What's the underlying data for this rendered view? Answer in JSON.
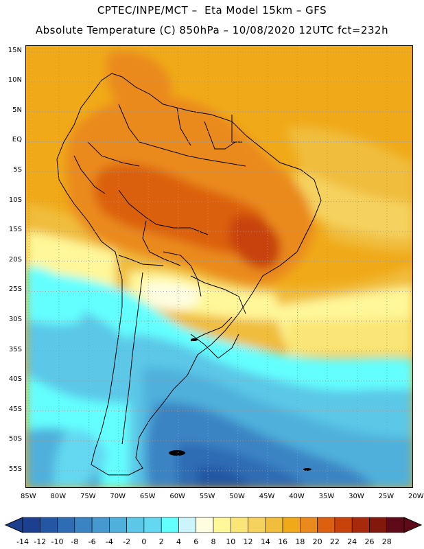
{
  "header": {
    "line1": "CPTEC/INPE/MCT –  Eta Model 15km – GFS",
    "line2": "Absolute Temperature (C) 850hPa – 10/08/2020 12UTC fct=232h"
  },
  "map": {
    "region": "South America",
    "latitude_labels": [
      "15N",
      "10N",
      "5N",
      "EQ",
      "5S",
      "10S",
      "15S",
      "20S",
      "25S",
      "30S",
      "35S",
      "40S",
      "45S",
      "50S",
      "55S"
    ],
    "latitude_values": [
      15,
      10,
      5,
      0,
      -5,
      -10,
      -15,
      -20,
      -25,
      -30,
      -35,
      -40,
      -45,
      -50,
      -55
    ],
    "longitude_labels": [
      "85W",
      "80W",
      "75W",
      "70W",
      "65W",
      "60W",
      "55W",
      "50W",
      "45W",
      "40W",
      "35W",
      "30W",
      "25W",
      "20W"
    ],
    "longitude_values": [
      -85,
      -80,
      -75,
      -70,
      -65,
      -60,
      -55,
      -50,
      -45,
      -40,
      -35,
      -30,
      -25,
      -20
    ],
    "lon_range": [
      -85.5,
      -20.5
    ],
    "lat_range": [
      -58,
      16
    ]
  },
  "colorbar": {
    "labels": [
      "-14",
      "-12",
      "-10",
      "-8",
      "-6",
      "-4",
      "-2",
      "0",
      "2",
      "4",
      "6",
      "8",
      "10",
      "12",
      "14",
      "16",
      "18",
      "20",
      "22",
      "24",
      "26",
      "28"
    ],
    "values": [
      -14,
      -12,
      -10,
      -8,
      -6,
      -4,
      -2,
      0,
      2,
      4,
      6,
      8,
      10,
      12,
      14,
      16,
      18,
      20,
      22,
      24,
      26,
      28
    ],
    "colors": [
      "#1d3f8f",
      "#2357a3",
      "#2e6cb4",
      "#3a84c4",
      "#4599cf",
      "#4fb0db",
      "#5cc7e7",
      "#63d8f0",
      "#63ffff",
      "#ccf5fb",
      "#fffde0",
      "#fff799",
      "#fae676",
      "#f5d25e",
      "#f0bd3d",
      "#f0aa19",
      "#ea8a1c",
      "#db6010",
      "#c8430a",
      "#a82a0c",
      "#82180c",
      "#5e0a18"
    ]
  }
}
